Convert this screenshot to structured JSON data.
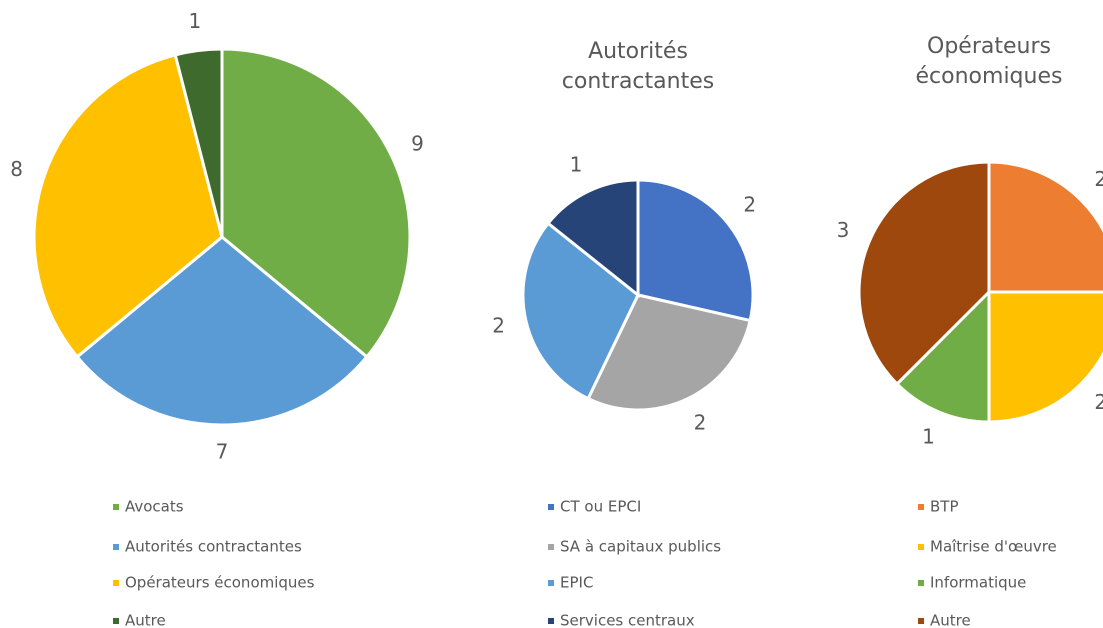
{
  "chart_data": [
    {
      "type": "pie",
      "categories": [
        "Avocats",
        "Autorités contractantes",
        "Opérateurs économiques",
        "Autre"
      ],
      "values": [
        9,
        7,
        8,
        1
      ],
      "colors": [
        "#70ad47",
        "#5b9bd5",
        "#ffc000",
        "#3f6a2d"
      ]
    },
    {
      "type": "pie",
      "title": "Autorités contractantes",
      "categories": [
        "CT ou EPCI",
        "SA à capitaux publics",
        "EPIC",
        "Services centraux"
      ],
      "values": [
        2,
        2,
        2,
        1
      ],
      "colors": [
        "#4472c4",
        "#a5a5a5",
        "#5b9bd5",
        "#264478"
      ]
    },
    {
      "type": "pie",
      "title": "Opérateurs économiques",
      "categories": [
        "BTP",
        "Maîtrise d'œuvre",
        "Informatique",
        "Autre"
      ],
      "values": [
        2,
        2,
        1,
        3
      ],
      "colors": [
        "#ed7d31",
        "#ffc000",
        "#70ad47",
        "#9e480e"
      ]
    }
  ]
}
